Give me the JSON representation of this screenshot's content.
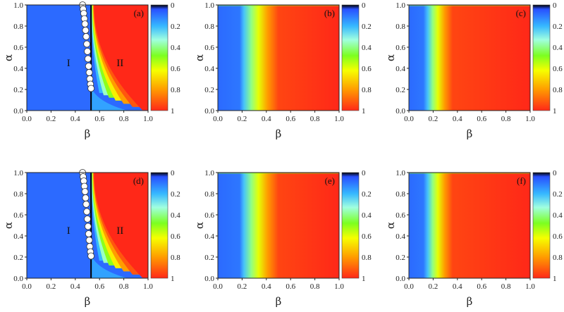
{
  "colors": {
    "stops": [
      "#000000",
      "#2850ff",
      "#36b8ff",
      "#a0ffe0",
      "#7cff20",
      "#f6ff00",
      "#ff9c00",
      "#ff2818"
    ],
    "boundary_marker_fill": "#ffffff",
    "boundary_line": "#000000"
  },
  "colorbar": {
    "ticks": [
      "0",
      "0.2",
      "0.4",
      "0.6",
      "0.8",
      "1"
    ]
  },
  "chart_data": [
    {
      "type": "heatmap",
      "panel_label": "(a)",
      "xlabel": "β",
      "ylabel": "α",
      "xlim": [
        0,
        1
      ],
      "ylim": [
        0,
        1
      ],
      "xticks": [
        "0.0",
        "0.2",
        "0.4",
        "0.6",
        "0.8",
        "1.0"
      ],
      "yticks": [
        "0.0",
        "0.2",
        "0.4",
        "0.6",
        "0.8",
        "1.0"
      ],
      "variant": "phase",
      "region_labels": [
        "I",
        "II"
      ],
      "boundary_beta": 0.53,
      "boundary_points": {
        "beta": [
          0.46,
          0.465,
          0.47,
          0.475,
          0.48,
          0.485,
          0.49,
          0.495,
          0.5,
          0.505,
          0.51,
          0.515,
          0.52,
          0.525,
          0.53
        ],
        "alpha": [
          1.0,
          0.96,
          0.92,
          0.87,
          0.82,
          0.76,
          0.7,
          0.63,
          0.56,
          0.49,
          0.42,
          0.36,
          0.3,
          0.25,
          0.21
        ]
      },
      "colorscale": [
        0,
        1
      ]
    },
    {
      "type": "heatmap",
      "panel_label": "(b)",
      "xlabel": "β",
      "ylabel": "α",
      "xlim": [
        0,
        1
      ],
      "ylim": [
        0,
        1
      ],
      "xticks": [
        "0.0",
        "0.2",
        "0.4",
        "0.6",
        "0.8",
        "1.0"
      ],
      "yticks": [
        "0.0",
        "0.2",
        "0.4",
        "0.6",
        "0.8",
        "1.0"
      ],
      "variant": "band",
      "transition_beta": [
        0.2,
        0.5
      ],
      "colorscale": [
        0,
        1
      ]
    },
    {
      "type": "heatmap",
      "panel_label": "(c)",
      "xlabel": "β",
      "ylabel": "α",
      "xlim": [
        0,
        1
      ],
      "ylim": [
        0,
        1
      ],
      "xticks": [
        "0.0",
        "0.2",
        "0.4",
        "0.6",
        "0.8",
        "1.0"
      ],
      "yticks": [
        "0.0",
        "0.2",
        "0.4",
        "0.6",
        "0.8",
        "1.0"
      ],
      "variant": "band",
      "transition_beta": [
        0.14,
        0.36
      ],
      "colorscale": [
        0,
        1
      ]
    },
    {
      "type": "heatmap",
      "panel_label": "(d)",
      "xlabel": "β",
      "ylabel": "α",
      "xlim": [
        0,
        1
      ],
      "ylim": [
        0,
        1
      ],
      "xticks": [
        "0.0",
        "0.2",
        "0.4",
        "0.6",
        "0.8",
        "1.0"
      ],
      "yticks": [
        "0.0",
        "0.2",
        "0.4",
        "0.6",
        "0.8",
        "1.0"
      ],
      "variant": "phase",
      "region_labels": [
        "I",
        "II"
      ],
      "boundary_beta": 0.53,
      "boundary_points": {
        "beta": [
          0.46,
          0.465,
          0.47,
          0.475,
          0.48,
          0.485,
          0.49,
          0.495,
          0.5,
          0.505,
          0.51,
          0.515,
          0.52,
          0.525,
          0.53
        ],
        "alpha": [
          1.0,
          0.96,
          0.92,
          0.87,
          0.82,
          0.76,
          0.7,
          0.63,
          0.56,
          0.49,
          0.42,
          0.36,
          0.3,
          0.25,
          0.21
        ]
      },
      "colorscale": [
        0,
        1
      ]
    },
    {
      "type": "heatmap",
      "panel_label": "(e)",
      "xlabel": "β",
      "ylabel": "α",
      "xlim": [
        0,
        1
      ],
      "ylim": [
        0,
        1
      ],
      "xticks": [
        "0.0",
        "0.2",
        "0.4",
        "0.6",
        "0.8",
        "1.0"
      ],
      "yticks": [
        "0.0",
        "0.2",
        "0.4",
        "0.6",
        "0.8",
        "1.0"
      ],
      "variant": "band",
      "transition_beta": [
        0.2,
        0.5
      ],
      "colorscale": [
        0,
        1
      ]
    },
    {
      "type": "heatmap",
      "panel_label": "(f)",
      "xlabel": "β",
      "ylabel": "α",
      "xlim": [
        0,
        1
      ],
      "ylim": [
        0,
        1
      ],
      "xticks": [
        "0.0",
        "0.2",
        "0.4",
        "0.6",
        "0.8",
        "1.0"
      ],
      "yticks": [
        "0.0",
        "0.2",
        "0.4",
        "0.6",
        "0.8",
        "1.0"
      ],
      "variant": "band",
      "transition_beta": [
        0.14,
        0.36
      ],
      "colorscale": [
        0,
        1
      ]
    }
  ]
}
